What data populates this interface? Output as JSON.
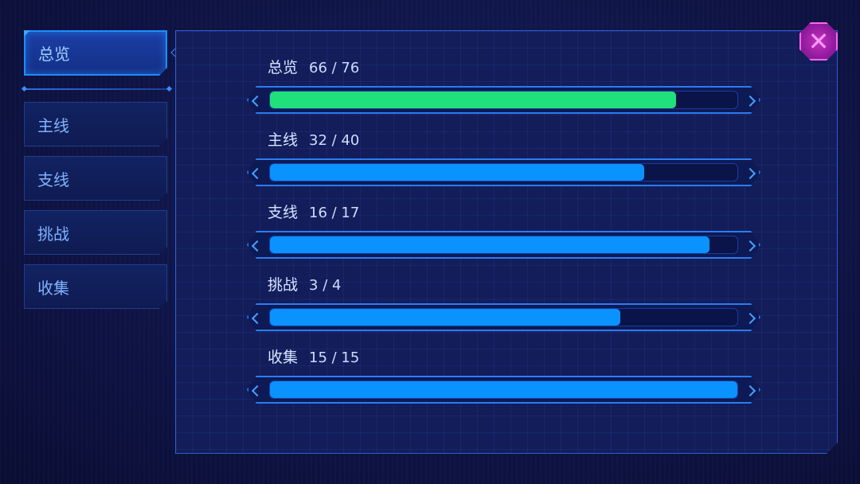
{
  "sidebar": {
    "tabs": [
      {
        "label": "总览",
        "active": true
      },
      {
        "label": "主线",
        "active": false
      },
      {
        "label": "支线",
        "active": false
      },
      {
        "label": "挑战",
        "active": false
      },
      {
        "label": "收集",
        "active": false
      }
    ]
  },
  "progress": [
    {
      "label": "总览",
      "count": "66 / 76",
      "fraction": 0.868,
      "color": "#1fe07a"
    },
    {
      "label": "主线",
      "count": "32 / 40",
      "fraction": 0.8,
      "color": "#0a92ff"
    },
    {
      "label": "支线",
      "count": "16 / 17",
      "fraction": 0.941,
      "color": "#0a92ff"
    },
    {
      "label": "挑战",
      "count": "3 / 4",
      "fraction": 0.75,
      "color": "#0a92ff"
    },
    {
      "label": "收集",
      "count": "15 / 15",
      "fraction": 1.0,
      "color": "#0a92ff"
    }
  ],
  "close_icon": "close-icon",
  "colors": {
    "accent": "#1f8cff",
    "close": "#d93ad6"
  }
}
